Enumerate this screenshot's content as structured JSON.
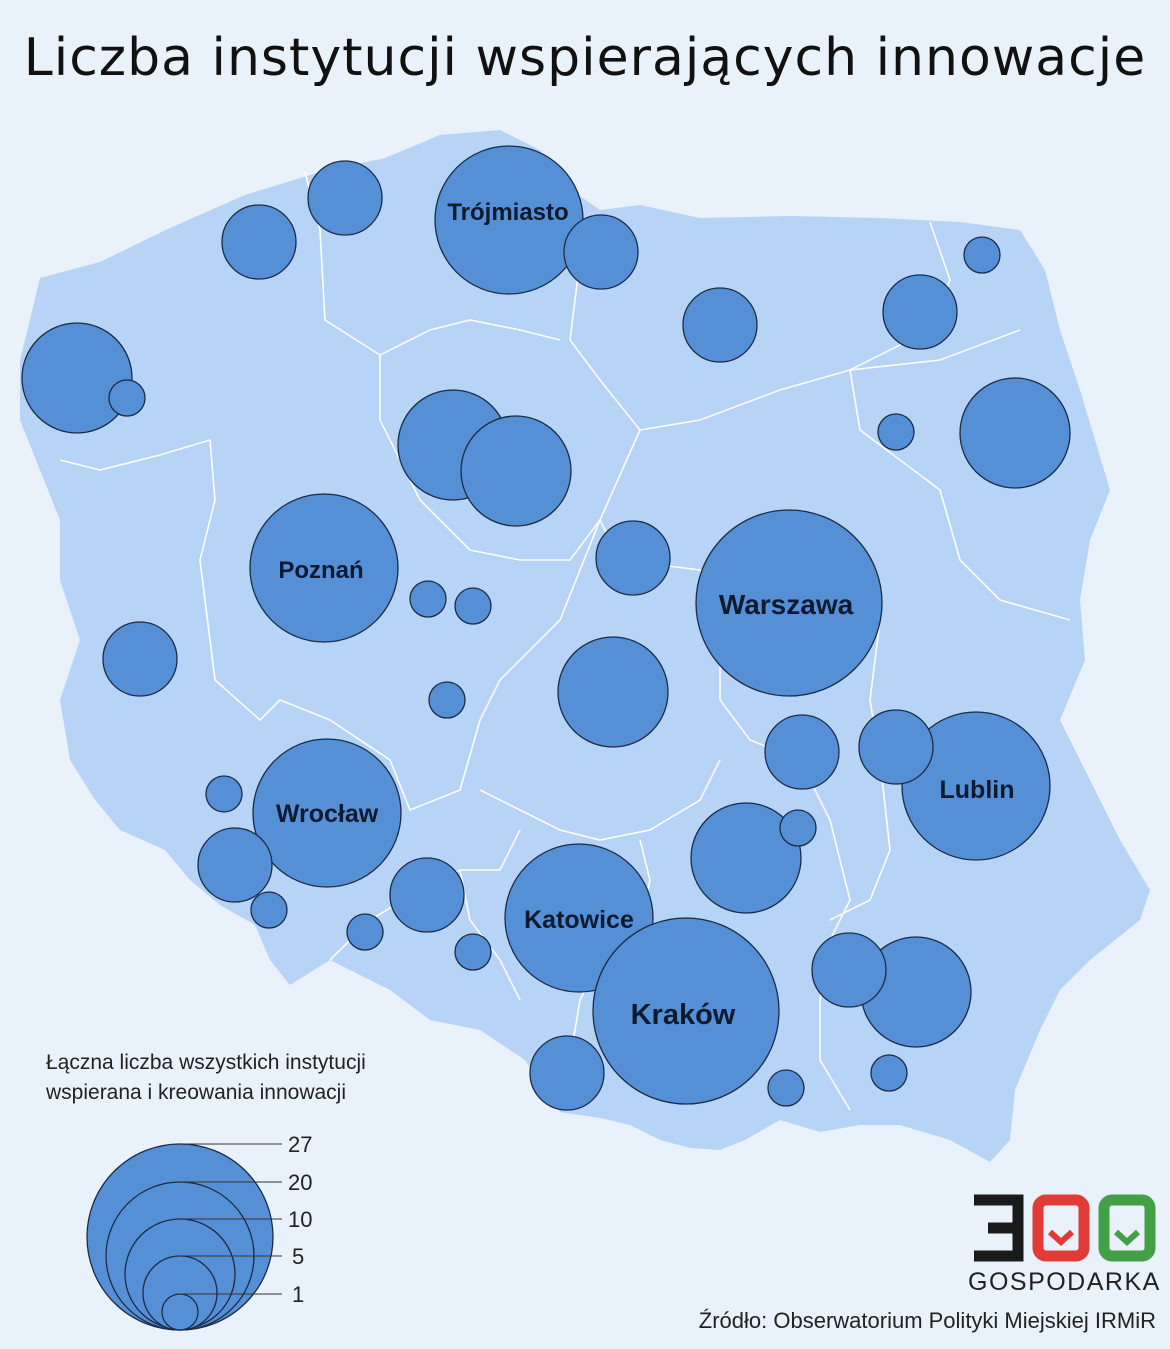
{
  "title": "Liczba instytucji wspierających innowacje",
  "legend": {
    "title_line1": "Łączna liczba wszystkich instytucji",
    "title_line2": "wspierana i kreowania innowacji",
    "values": [
      "27",
      "20",
      "10",
      "5",
      "1"
    ]
  },
  "source": "Źródło: Obserwatorium Polityki Miejskiej IRMiR",
  "logo": {
    "number": "300",
    "name": "GOSPODARKA"
  },
  "cities": {
    "trojmiasto": "Trójmiasto",
    "poznan": "Poznań",
    "warszawa": "Warszawa",
    "lublin": "Lublin",
    "wroclaw": "Wrocław",
    "katowice": "Katowice",
    "krakow": "Kraków"
  },
  "colors": {
    "background": "#e9f1fb",
    "land": "#b7d4f6",
    "bubble": "#5590d6",
    "logo_red": "#e23a36",
    "logo_green": "#43a047"
  }
}
